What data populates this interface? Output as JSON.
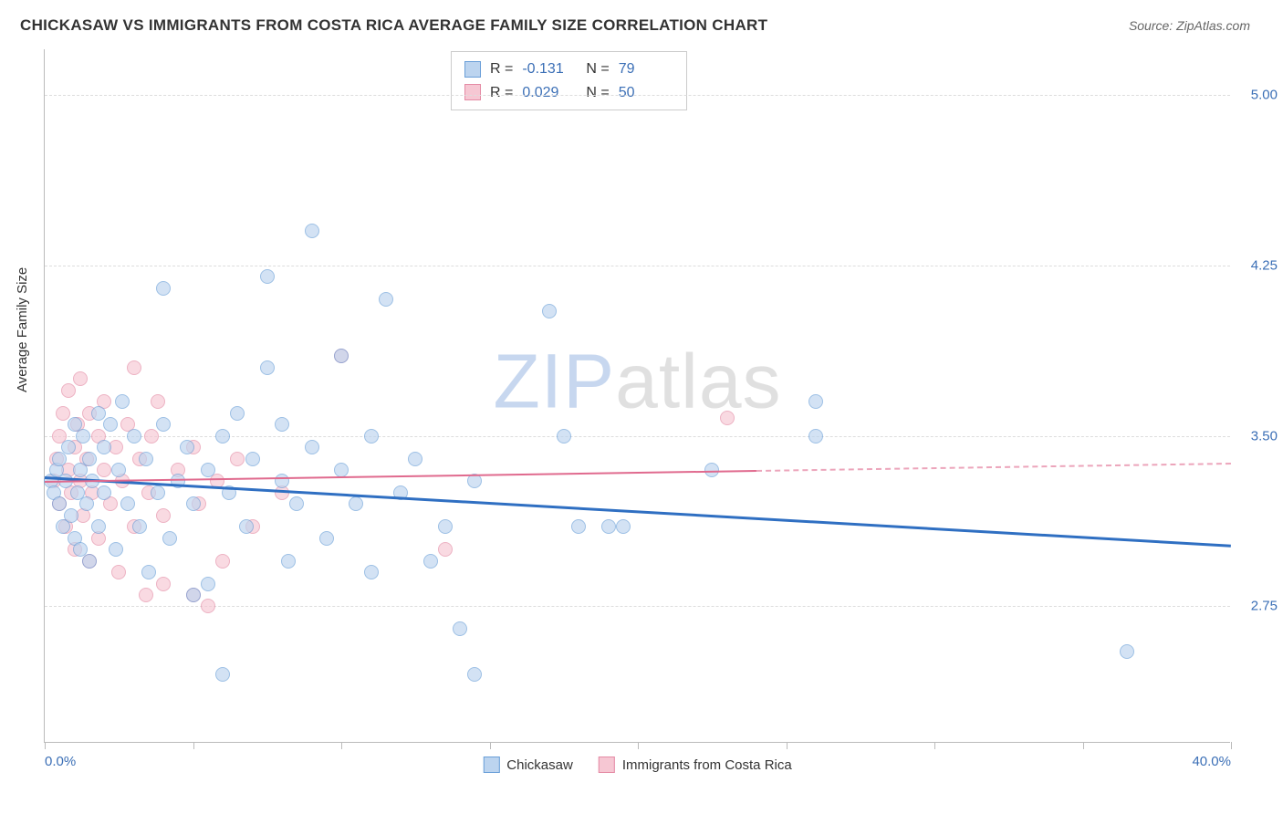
{
  "title": "CHICKASAW VS IMMIGRANTS FROM COSTA RICA AVERAGE FAMILY SIZE CORRELATION CHART",
  "source_prefix": "Source: ",
  "source_name": "ZipAtlas.com",
  "y_axis_label": "Average Family Size",
  "watermark_zip": "ZIP",
  "watermark_atlas": "atlas",
  "chart": {
    "type": "scatter",
    "background_color": "#ffffff",
    "grid_color": "#dddddd",
    "axis_color": "#bbbbbb",
    "tick_label_color": "#3b6fb6",
    "x_range": [
      0,
      40
    ],
    "y_range": [
      2.15,
      5.2
    ],
    "y_ticks": [
      2.75,
      3.5,
      4.25,
      5.0
    ],
    "y_tick_labels": [
      "2.75",
      "3.50",
      "4.25",
      "5.00"
    ],
    "x_ticks": [
      0,
      5,
      10,
      15,
      20,
      25,
      30,
      35,
      40
    ],
    "x_labels_shown": {
      "0": "0.0%",
      "40": "40.0%"
    },
    "marker_radius": 8,
    "marker_stroke_width": 1.2
  },
  "series": [
    {
      "name": "Chickasaw",
      "fill": "#bcd4ef",
      "stroke": "#6a9fd8",
      "fill_opacity": 0.65,
      "r_value": "-0.131",
      "n_value": "79",
      "trend": {
        "color": "#2f6fc2",
        "width": 2.5,
        "y_at_x0": 3.32,
        "y_at_x40": 3.02,
        "solid_to_x": 40
      },
      "points": [
        [
          0.2,
          3.3
        ],
        [
          0.3,
          3.25
        ],
        [
          0.4,
          3.35
        ],
        [
          0.5,
          3.2
        ],
        [
          0.5,
          3.4
        ],
        [
          0.6,
          3.1
        ],
        [
          0.7,
          3.3
        ],
        [
          0.8,
          3.45
        ],
        [
          0.9,
          3.15
        ],
        [
          1.0,
          3.55
        ],
        [
          1.0,
          3.05
        ],
        [
          1.1,
          3.25
        ],
        [
          1.2,
          3.35
        ],
        [
          1.2,
          3.0
        ],
        [
          1.3,
          3.5
        ],
        [
          1.4,
          3.2
        ],
        [
          1.5,
          3.4
        ],
        [
          1.5,
          2.95
        ],
        [
          1.6,
          3.3
        ],
        [
          1.8,
          3.6
        ],
        [
          1.8,
          3.1
        ],
        [
          2.0,
          3.25
        ],
        [
          2.0,
          3.45
        ],
        [
          2.2,
          3.55
        ],
        [
          2.4,
          3.0
        ],
        [
          2.5,
          3.35
        ],
        [
          2.6,
          3.65
        ],
        [
          2.8,
          3.2
        ],
        [
          3.0,
          3.5
        ],
        [
          3.2,
          3.1
        ],
        [
          3.4,
          3.4
        ],
        [
          3.5,
          2.9
        ],
        [
          3.8,
          3.25
        ],
        [
          4.0,
          3.55
        ],
        [
          4.0,
          4.15
        ],
        [
          4.2,
          3.05
        ],
        [
          4.5,
          3.3
        ],
        [
          4.8,
          3.45
        ],
        [
          5.0,
          3.2
        ],
        [
          5.0,
          2.8
        ],
        [
          5.5,
          3.35
        ],
        [
          5.5,
          2.85
        ],
        [
          6.0,
          3.5
        ],
        [
          6.0,
          2.45
        ],
        [
          6.2,
          3.25
        ],
        [
          6.5,
          3.6
        ],
        [
          6.8,
          3.1
        ],
        [
          7.0,
          3.4
        ],
        [
          7.5,
          3.8
        ],
        [
          7.5,
          4.2
        ],
        [
          8.0,
          3.3
        ],
        [
          8.0,
          3.55
        ],
        [
          8.2,
          2.95
        ],
        [
          8.5,
          3.2
        ],
        [
          9.0,
          3.45
        ],
        [
          9.0,
          4.4
        ],
        [
          9.5,
          3.05
        ],
        [
          10.0,
          3.35
        ],
        [
          10.0,
          3.85
        ],
        [
          10.5,
          3.2
        ],
        [
          11.0,
          3.5
        ],
        [
          11.0,
          2.9
        ],
        [
          11.5,
          4.1
        ],
        [
          12.0,
          3.25
        ],
        [
          12.5,
          3.4
        ],
        [
          13.0,
          2.95
        ],
        [
          13.5,
          3.1
        ],
        [
          14.0,
          2.65
        ],
        [
          14.5,
          3.3
        ],
        [
          14.5,
          2.45
        ],
        [
          17.0,
          4.05
        ],
        [
          17.5,
          3.5
        ],
        [
          18.0,
          3.1
        ],
        [
          19.0,
          3.1
        ],
        [
          19.5,
          3.1
        ],
        [
          22.5,
          3.35
        ],
        [
          26.0,
          3.65
        ],
        [
          26.0,
          3.5
        ],
        [
          36.5,
          2.55
        ]
      ]
    },
    {
      "name": "Immigrants from Costa Rica",
      "fill": "#f6c7d3",
      "stroke": "#e48aa4",
      "fill_opacity": 0.65,
      "r_value": "0.029",
      "n_value": "50",
      "trend": {
        "color": "#e06a8e",
        "width": 2,
        "y_at_x0": 3.3,
        "y_at_x40": 3.38,
        "solid_to_x": 24
      },
      "points": [
        [
          0.3,
          3.3
        ],
        [
          0.4,
          3.4
        ],
        [
          0.5,
          3.2
        ],
        [
          0.5,
          3.5
        ],
        [
          0.6,
          3.6
        ],
        [
          0.7,
          3.1
        ],
        [
          0.8,
          3.35
        ],
        [
          0.8,
          3.7
        ],
        [
          0.9,
          3.25
        ],
        [
          1.0,
          3.45
        ],
        [
          1.0,
          3.0
        ],
        [
          1.1,
          3.55
        ],
        [
          1.2,
          3.3
        ],
        [
          1.2,
          3.75
        ],
        [
          1.3,
          3.15
        ],
        [
          1.4,
          3.4
        ],
        [
          1.5,
          3.6
        ],
        [
          1.5,
          2.95
        ],
        [
          1.6,
          3.25
        ],
        [
          1.8,
          3.5
        ],
        [
          1.8,
          3.05
        ],
        [
          2.0,
          3.35
        ],
        [
          2.0,
          3.65
        ],
        [
          2.2,
          3.2
        ],
        [
          2.4,
          3.45
        ],
        [
          2.5,
          2.9
        ],
        [
          2.6,
          3.3
        ],
        [
          2.8,
          3.55
        ],
        [
          3.0,
          3.1
        ],
        [
          3.0,
          3.8
        ],
        [
          3.2,
          3.4
        ],
        [
          3.4,
          2.8
        ],
        [
          3.5,
          3.25
        ],
        [
          3.6,
          3.5
        ],
        [
          3.8,
          3.65
        ],
        [
          4.0,
          3.15
        ],
        [
          4.0,
          2.85
        ],
        [
          4.5,
          3.35
        ],
        [
          5.0,
          3.45
        ],
        [
          5.0,
          2.8
        ],
        [
          5.2,
          3.2
        ],
        [
          5.5,
          2.75
        ],
        [
          5.8,
          3.3
        ],
        [
          6.0,
          2.95
        ],
        [
          6.5,
          3.4
        ],
        [
          7.0,
          3.1
        ],
        [
          8.0,
          3.25
        ],
        [
          10.0,
          3.85
        ],
        [
          13.5,
          3.0
        ],
        [
          23.0,
          3.58
        ]
      ]
    }
  ],
  "legend_top_labels": {
    "r": "R =",
    "n": "N ="
  },
  "legend_bottom": [
    "Chickasaw",
    "Immigrants from Costa Rica"
  ]
}
